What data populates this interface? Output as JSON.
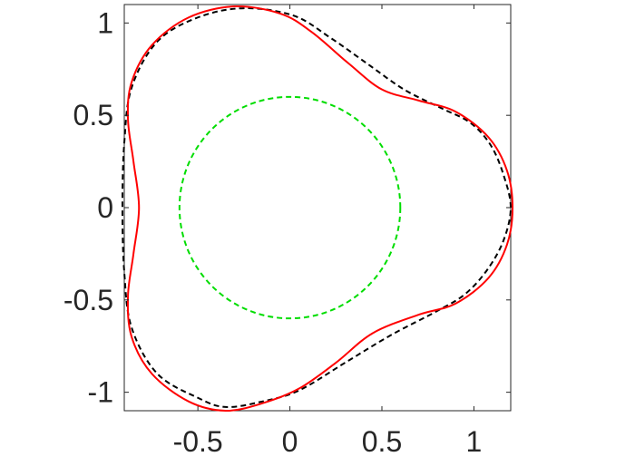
{
  "chart_data": {
    "type": "line",
    "title": "",
    "xlabel": "",
    "ylabel": "",
    "xlim": [
      -0.9,
      1.2
    ],
    "ylim": [
      -1.1,
      1.1
    ],
    "x_ticks": [
      -0.5,
      0,
      0.5,
      1
    ],
    "y_ticks": [
      -1,
      -0.5,
      0,
      0.5,
      1
    ],
    "x_tick_labels": [
      "-0.5",
      "0",
      "0.5",
      "1"
    ],
    "y_tick_labels": [
      "-1",
      "-0.5",
      "0",
      "0.5",
      "1"
    ],
    "grid": false,
    "legend": "none",
    "series": [
      {
        "style": "dashed",
        "color": "#000000",
        "points": [
          [
            1.2,
            0.0
          ],
          [
            1.16,
            0.18
          ],
          [
            1.09,
            0.34
          ],
          [
            0.98,
            0.46
          ],
          [
            0.82,
            0.54
          ],
          [
            0.62,
            0.64
          ],
          [
            0.42,
            0.78
          ],
          [
            0.22,
            0.92
          ],
          [
            0.02,
            1.04
          ],
          [
            -0.25,
            1.08
          ],
          [
            -0.5,
            1.03
          ],
          [
            -0.72,
            0.9
          ],
          [
            -0.86,
            0.65
          ],
          [
            -0.9,
            0.35
          ],
          [
            -0.91,
            0.0
          ],
          [
            -0.9,
            -0.35
          ],
          [
            -0.86,
            -0.65
          ],
          [
            -0.72,
            -0.9
          ],
          [
            -0.5,
            -1.03
          ],
          [
            -0.35,
            -1.08
          ],
          [
            -0.15,
            -1.05
          ],
          [
            0.05,
            -0.99
          ],
          [
            0.3,
            -0.84
          ],
          [
            0.55,
            -0.69
          ],
          [
            0.8,
            -0.56
          ],
          [
            0.95,
            -0.47
          ],
          [
            1.07,
            -0.34
          ],
          [
            1.16,
            -0.18
          ],
          [
            1.2,
            0.0
          ]
        ]
      },
      {
        "style": "solid",
        "color": "#ff0000",
        "points": [
          [
            1.21,
            0.0
          ],
          [
            1.18,
            0.2
          ],
          [
            1.08,
            0.38
          ],
          [
            0.9,
            0.52
          ],
          [
            0.7,
            0.58
          ],
          [
            0.5,
            0.64
          ],
          [
            0.32,
            0.78
          ],
          [
            0.12,
            0.95
          ],
          [
            -0.05,
            1.05
          ],
          [
            -0.3,
            1.09
          ],
          [
            -0.55,
            1.03
          ],
          [
            -0.75,
            0.88
          ],
          [
            -0.86,
            0.68
          ],
          [
            -0.88,
            0.48
          ],
          [
            -0.85,
            0.25
          ],
          [
            -0.82,
            0.0
          ],
          [
            -0.85,
            -0.25
          ],
          [
            -0.88,
            -0.48
          ],
          [
            -0.86,
            -0.7
          ],
          [
            -0.75,
            -0.9
          ],
          [
            -0.55,
            -1.05
          ],
          [
            -0.35,
            -1.1
          ],
          [
            -0.15,
            -1.06
          ],
          [
            0.05,
            -0.98
          ],
          [
            0.25,
            -0.84
          ],
          [
            0.45,
            -0.68
          ],
          [
            0.7,
            -0.58
          ],
          [
            0.9,
            -0.52
          ],
          [
            1.08,
            -0.38
          ],
          [
            1.18,
            -0.2
          ],
          [
            1.21,
            0.0
          ]
        ]
      },
      {
        "style": "dashed",
        "color": "#00dd00",
        "shape": "circle",
        "center": [
          0,
          0
        ],
        "radius": 0.6
      }
    ]
  }
}
